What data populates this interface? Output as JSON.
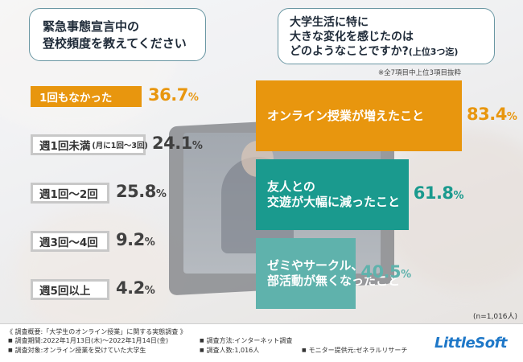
{
  "left_header": {
    "line1": "緊急事態宣言中の",
    "line2": "登校頻度を教えてください"
  },
  "right_header": {
    "line1": "大学生活に特に",
    "line2": "大きな変化を感じたのは",
    "line3_main": "どのようなことですか?",
    "line3_small": "(上位3つ迄)"
  },
  "note_top": "※全7項目中上位3項目抜粋",
  "unit_symbol": "%",
  "chart_data": [
    {
      "type": "bar",
      "title": "緊急事態宣言中の登校頻度を教えてください",
      "categories": [
        "1回もなかった",
        "週1回未満(月に1回〜3回)",
        "週1回〜2回",
        "週3回〜4回",
        "週5回以上"
      ],
      "values": [
        36.7,
        24.1,
        25.8,
        9.2,
        4.2
      ],
      "value_labels": [
        "36.7",
        "24.1",
        "25.8",
        "9.2",
        "4.2"
      ],
      "highlight_color": "#e8960e"
    },
    {
      "type": "bar",
      "title": "大学生活に特に大きな変化を感じたのはどのようなことですか?(上位3つ迄)",
      "categories": [
        "オンライン授業が増えたこと",
        "友人との交遊が大幅に減ったこと",
        "ゼミやサークル、部活動が無くなったこと"
      ],
      "values": [
        83.4,
        61.8,
        40.5
      ],
      "value_labels": [
        "83.4",
        "61.8",
        "40.5"
      ],
      "colors": [
        "#e8960e",
        "#1a9a8e",
        "#5fb2ac"
      ]
    }
  ],
  "left_items": [
    {
      "main": "1回もなかった",
      "sub": ""
    },
    {
      "main": "週1回未満",
      "sub": "(月に1回〜3回)"
    },
    {
      "main": "週1回〜2回",
      "sub": ""
    },
    {
      "main": "週3回〜4回",
      "sub": ""
    },
    {
      "main": "週5回以上",
      "sub": ""
    }
  ],
  "right_items": [
    {
      "line1": "オンライン授業が増えたこと",
      "line2": ""
    },
    {
      "line1": "友人との",
      "line2": "交遊が大幅に減ったこと"
    },
    {
      "line1": "ゼミやサークル、",
      "line2": "部活動が無くなったこと"
    }
  ],
  "n_note": "(n=1,016人)",
  "footer": {
    "title": "《 調査概要:「大学生のオンライン授業」に関する実態調査 》",
    "period": "調査期間:2022年1月13日(木)〜2022年1月14日(金)",
    "target": "調査対象:オンライン授業を受けていた大学生",
    "method": "調査方法:インターネット調査",
    "count": "調査人数:1,016人",
    "provider": "モニター提供元:ゼネラルリサーチ"
  },
  "logo_text": "LittleSoft"
}
